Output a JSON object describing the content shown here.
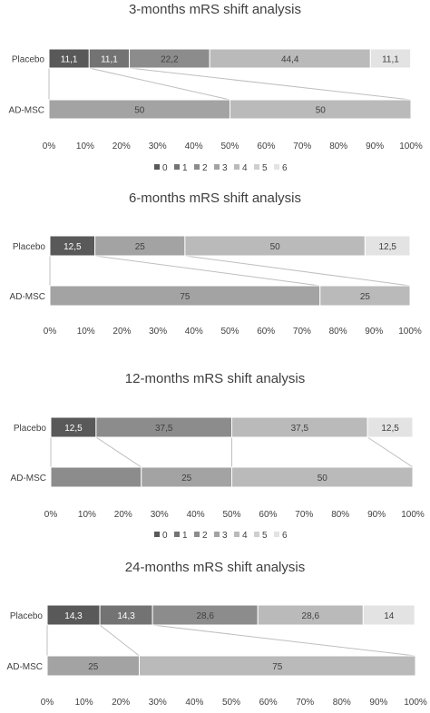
{
  "chart_data": [
    {
      "type": "bar",
      "title": "3-months mRS shift analysis",
      "categories": [
        "Placebo",
        "AD-MSC"
      ],
      "series": [
        {
          "name": "0",
          "values": [
            11.1,
            0
          ]
        },
        {
          "name": "1",
          "values": [
            11.1,
            0
          ]
        },
        {
          "name": "2",
          "values": [
            22.2,
            0
          ]
        },
        {
          "name": "3",
          "values": [
            0,
            50
          ]
        },
        {
          "name": "4",
          "values": [
            44.4,
            50
          ]
        },
        {
          "name": "5",
          "values": [
            0,
            0
          ]
        },
        {
          "name": "6",
          "values": [
            11.1,
            0
          ]
        }
      ],
      "data_labels": [
        [
          "11,1",
          "11,1",
          "22,2",
          "",
          "44,4",
          "",
          "11,1"
        ],
        [
          "",
          "",
          "",
          "50",
          "50",
          "",
          ""
        ]
      ],
      "xlim": [
        0,
        100
      ],
      "x_ticks": [
        "0%",
        "10%",
        "20%",
        "30%",
        "40%",
        "50%",
        "60%",
        "70%",
        "80%",
        "90%",
        "100%"
      ],
      "stacked": true,
      "percent": true,
      "orientation": "horizontal",
      "legend": true,
      "legend_position": "bottom"
    },
    {
      "type": "bar",
      "title": "6-months mRS shift analysis",
      "categories": [
        "Placebo",
        "AD-MSC"
      ],
      "series": [
        {
          "name": "0",
          "values": [
            12.5,
            0
          ]
        },
        {
          "name": "1",
          "values": [
            0,
            0
          ]
        },
        {
          "name": "2",
          "values": [
            0,
            0
          ]
        },
        {
          "name": "3",
          "values": [
            25,
            75
          ]
        },
        {
          "name": "4",
          "values": [
            50,
            25
          ]
        },
        {
          "name": "5",
          "values": [
            0,
            0
          ]
        },
        {
          "name": "6",
          "values": [
            12.5,
            0
          ]
        }
      ],
      "data_labels": [
        [
          "12,5",
          "",
          "",
          "25",
          "50",
          "",
          "12,5"
        ],
        [
          "",
          "",
          "",
          "75",
          "25",
          "",
          ""
        ]
      ],
      "xlim": [
        0,
        100
      ],
      "x_ticks": [
        "0%",
        "10%",
        "20%",
        "30%",
        "40%",
        "50%",
        "60%",
        "70%",
        "80%",
        "90%",
        "100%"
      ],
      "stacked": true,
      "percent": true,
      "orientation": "horizontal",
      "legend": false
    },
    {
      "type": "bar",
      "title": "12-months mRS shift analysis",
      "categories": [
        "Placebo",
        "AD-MSC"
      ],
      "series": [
        {
          "name": "0",
          "values": [
            12.5,
            0
          ]
        },
        {
          "name": "1",
          "values": [
            0,
            0
          ]
        },
        {
          "name": "2",
          "values": [
            37.5,
            25
          ]
        },
        {
          "name": "3",
          "values": [
            0,
            25
          ]
        },
        {
          "name": "4",
          "values": [
            37.5,
            50
          ]
        },
        {
          "name": "5",
          "values": [
            0,
            0
          ]
        },
        {
          "name": "6",
          "values": [
            12.5,
            0
          ]
        }
      ],
      "data_labels": [
        [
          "12,5",
          "",
          "37,5",
          "",
          "37,5",
          "",
          "12,5"
        ],
        [
          "",
          "",
          "",
          "25",
          "50",
          "",
          ""
        ]
      ],
      "xlim": [
        0,
        100
      ],
      "x_ticks": [
        "0%",
        "10%",
        "20%",
        "30%",
        "40%",
        "50%",
        "60%",
        "70%",
        "80%",
        "90%",
        "100%"
      ],
      "stacked": true,
      "percent": true,
      "orientation": "horizontal",
      "legend": true,
      "legend_position": "bottom"
    },
    {
      "type": "bar",
      "title": "24-months mRS shift analysis",
      "categories": [
        "Placebo",
        "AD-MSC"
      ],
      "series": [
        {
          "name": "0",
          "values": [
            14.3,
            0
          ]
        },
        {
          "name": "1",
          "values": [
            14.3,
            0
          ]
        },
        {
          "name": "2",
          "values": [
            28.6,
            0
          ]
        },
        {
          "name": "3",
          "values": [
            0,
            25
          ]
        },
        {
          "name": "4",
          "values": [
            28.6,
            75
          ]
        },
        {
          "name": "5",
          "values": [
            0,
            0
          ]
        },
        {
          "name": "6",
          "values": [
            14,
            0
          ]
        }
      ],
      "data_labels": [
        [
          "14,3",
          "14,3",
          "28,6",
          "",
          "28,6",
          "",
          "14"
        ],
        [
          "",
          "",
          "",
          "25",
          "75",
          "",
          ""
        ]
      ],
      "xlim": [
        0,
        100
      ],
      "x_ticks": [
        "0%",
        "10%",
        "20%",
        "30%",
        "40%",
        "50%",
        "60%",
        "70%",
        "80%",
        "90%",
        "100%"
      ],
      "stacked": true,
      "percent": true,
      "orientation": "horizontal",
      "legend": false
    }
  ],
  "colors": {
    "0": "#595959",
    "1": "#737373",
    "2": "#8c8c8c",
    "3": "#a3a3a3",
    "4": "#bababa",
    "5": "#cfcfcf",
    "6": "#e3e3e3",
    "text": "#404040",
    "connector": "#bfbfbf",
    "axis": "#d9d9d9",
    "label_light": "#ffffff"
  }
}
